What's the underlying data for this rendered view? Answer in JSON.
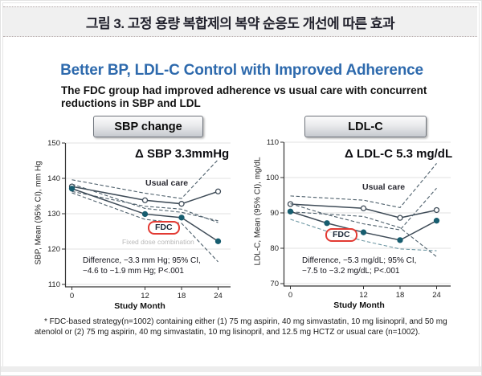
{
  "page": {
    "figure_title": "그림 3. 고정 용량 복합제의 복약 순응도 개선에 따른 효과",
    "heading": "Better BP, LDL-C Control with Improved Adherence",
    "subtitle_line1": "The FDC group had improved adherence vs usual care with concurrent",
    "subtitle_line2": "reductions in SBP and LDL",
    "footnote": "* FDC-based strategy(n=1002) containing either (1) 75 mg aspirin, 40 mg simvastatin, 10 mg lisinopril, and 50 mg atenolol or (2) 75 mg aspirin, 40 mg simvastatin, 10 mg lisinopril, and 12.5 mg HCTZ or usual care (n=1002)."
  },
  "colors": {
    "heading_blue": "#2e6aad",
    "line_dark": "#3e4b57",
    "ci_line": "#4d5f6b",
    "ci_line_light": "#6f98a4",
    "marker_fill_teal": "#175d6f",
    "fdc_box_red": "#e23a33",
    "grid_gray": "#e0e0e0"
  },
  "chart_data": [
    {
      "type": "line",
      "panel_label": "SBP change",
      "delta_label": "Δ SBP 3.3mmHg",
      "xlabel": "Study Month",
      "ylabel": "SBP, Mean (95% CI), mm Hg",
      "ylim": [
        110,
        150
      ],
      "yticks": [
        150,
        140,
        130,
        120,
        110
      ],
      "xticks": [
        0,
        12,
        18,
        24
      ],
      "legend_position": "inline-annotations",
      "grid": true,
      "series": [
        {
          "name": "usual-care-upper-ci",
          "style": "dashed",
          "marker": null,
          "color": "#4d5f6b",
          "x": [
            0,
            12,
            18,
            24
          ],
          "y": [
            139.6,
            135.8,
            134.3,
            145.3
          ]
        },
        {
          "name": "usual-care-mean",
          "style": "solid",
          "marker": "open",
          "color": "#3e4b57",
          "x": [
            0,
            12,
            18,
            24
          ],
          "y": [
            137.7,
            133.8,
            132.8,
            136.3
          ]
        },
        {
          "name": "usual-care-lower-ci",
          "style": "dashed",
          "marker": null,
          "color": "#4d5f6b",
          "x": [
            0,
            12,
            18,
            24
          ],
          "y": [
            136.3,
            132.1,
            131.3,
            127.5
          ]
        },
        {
          "name": "fdc-upper-ci",
          "style": "dashed",
          "marker": null,
          "color": "#4d5f6b",
          "x": [
            0,
            12,
            18,
            24
          ],
          "y": [
            138.4,
            131.5,
            130.4,
            128.0
          ]
        },
        {
          "name": "fdc-mean",
          "style": "solid",
          "marker": "filled",
          "color": "#3e4b57",
          "x": [
            0,
            12,
            18,
            24
          ],
          "y": [
            137.1,
            129.9,
            128.9,
            122.2
          ]
        },
        {
          "name": "fdc-lower-ci",
          "style": "dashed",
          "marker": null,
          "color": "#4d5f6b",
          "x": [
            0,
            12,
            18,
            24
          ],
          "y": [
            135.9,
            128.4,
            127.3,
            116.4
          ]
        }
      ],
      "annotations": {
        "usual_care": "Usual care",
        "fdc": "FDC",
        "fdc_sub": "Fixed dose combination",
        "difference_line1": "Difference, −3.3 mm Hg; 95% CI,",
        "difference_line2": "−4.6 to −1.9 mm Hg; P<.001"
      }
    },
    {
      "type": "line",
      "panel_label": "LDL-C",
      "delta_label": "Δ LDL-C 5.3 mg/dL",
      "xlabel": "Study Month",
      "ylabel": "LDL-C, Mean (95% CI), mg/dL",
      "ylim": [
        70,
        110
      ],
      "yticks": [
        110,
        100,
        90,
        80,
        70
      ],
      "xticks": [
        0,
        12,
        18,
        24
      ],
      "legend_position": "inline-annotations",
      "grid": true,
      "series": [
        {
          "name": "usual-care-upper-ci",
          "style": "dashed",
          "marker": null,
          "color": "#4d5f6b",
          "x": [
            0,
            12,
            18,
            24
          ],
          "y": [
            94.8,
            93.6,
            91.5,
            104.0
          ]
        },
        {
          "name": "usual-care-mean",
          "style": "solid",
          "marker": "open",
          "color": "#3e4b57",
          "x": [
            0,
            12,
            18,
            24
          ],
          "y": [
            92.5,
            91.3,
            88.6,
            90.8
          ]
        },
        {
          "name": "usual-care-lower-ci",
          "style": "dashed",
          "marker": null,
          "color": "#4d5f6b",
          "x": [
            0,
            12,
            18,
            24
          ],
          "y": [
            90.3,
            89.0,
            85.8,
            77.6
          ]
        },
        {
          "name": "fdc-upper-ci",
          "style": "dashed",
          "marker": null,
          "color": "#4d5f6b",
          "x": [
            0,
            6,
            12,
            18,
            24
          ],
          "y": [
            92.6,
            89.5,
            86.9,
            85.2,
            97.0
          ]
        },
        {
          "name": "fdc-mean",
          "style": "solid",
          "marker": "filled",
          "color": "#3e4b57",
          "x": [
            0,
            6,
            12,
            18,
            24
          ],
          "y": [
            90.4,
            87.1,
            84.5,
            82.3,
            87.8
          ]
        },
        {
          "name": "fdc-lower-ci",
          "style": "dashed",
          "marker": null,
          "color": "#6f98a4",
          "x": [
            0,
            6,
            12,
            18,
            24
          ],
          "y": [
            88.2,
            84.8,
            82.1,
            79.8,
            79.3
          ]
        }
      ],
      "annotations": {
        "usual_care": "Usual care",
        "fdc": "FDC",
        "difference_line1": "Difference, −5.3 mg/dL; 95% CI,",
        "difference_line2": "−7.5 to −3.2 mg/dL; P<.001"
      }
    }
  ]
}
